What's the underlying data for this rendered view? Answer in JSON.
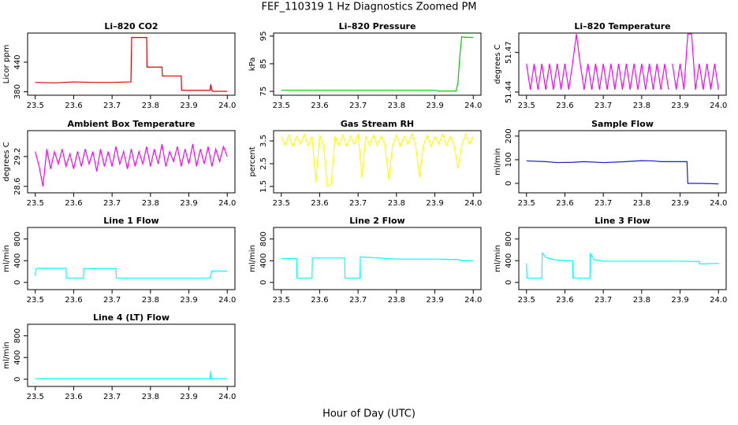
{
  "title": "FEF_110319  1 Hz Diagnostics Zoomed PM",
  "xlabel": "Hour of Day (UTC)",
  "chart_data": [
    {
      "type": "line",
      "title": "Li–820 CO2",
      "ylabel": "Licor ppm",
      "color": "#e00000",
      "xlim": [
        23.48,
        24.02
      ],
      "xticks": [
        23.5,
        23.6,
        23.7,
        23.8,
        23.9,
        {
          "value": 24,
          "label": "24.0"
        }
      ],
      "ylim": [
        373,
        499
      ],
      "yticks": [
        380,
        440
      ],
      "x": [
        23.5,
        23.55,
        23.6,
        23.65,
        23.7,
        23.749,
        23.751,
        23.79,
        23.791,
        23.83,
        23.831,
        23.88,
        23.881,
        23.955,
        23.957,
        23.96,
        23.963,
        24.0
      ],
      "values": [
        399,
        398,
        400,
        399,
        399,
        400,
        490,
        490,
        430,
        430,
        412,
        412,
        383,
        383,
        395,
        382,
        381,
        381
      ]
    },
    {
      "type": "line",
      "title": "Li–820 Pressure",
      "ylabel": "kPa",
      "color": "#00cd00",
      "xlim": [
        23.48,
        24.02
      ],
      "xticks": [
        23.5,
        23.6,
        23.7,
        23.8,
        23.9,
        {
          "value": 24,
          "label": "24.0"
        }
      ],
      "ylim": [
        73.6,
        96.1
      ],
      "yticks": [
        75,
        85,
        95
      ],
      "x": [
        23.5,
        23.6,
        23.7,
        23.8,
        23.9,
        23.91,
        23.955,
        23.96,
        23.965,
        23.97,
        23.975,
        24.0
      ],
      "values": [
        75.4,
        75.4,
        75.4,
        75.4,
        75.4,
        75.1,
        75.1,
        78,
        88,
        94.8,
        94.6,
        94.5
      ]
    },
    {
      "type": "line",
      "title": "Li–820 Temperature",
      "ylabel": "degrees C",
      "color": "#ff00ff",
      "xlim": [
        23.48,
        24.02
      ],
      "xticks": [
        23.5,
        23.6,
        23.7,
        23.8,
        23.9,
        {
          "value": 24,
          "label": "24.0"
        }
      ],
      "ylim": [
        51.4376,
        51.4847
      ],
      "yticks": [
        51.44,
        51.47
      ],
      "x": [
        23.5,
        23.51,
        23.52,
        23.53,
        23.54,
        23.55,
        23.56,
        23.57,
        23.58,
        23.59,
        23.6,
        23.61,
        23.62,
        23.63,
        23.64,
        23.65,
        23.66,
        23.67,
        23.68,
        23.69,
        23.7,
        23.71,
        23.72,
        23.73,
        23.74,
        23.75,
        23.76,
        23.77,
        23.78,
        23.79,
        23.8,
        23.81,
        23.82,
        23.83,
        23.84,
        23.85,
        23.86,
        23.87,
        23.875,
        23.88,
        23.89,
        23.9,
        23.91,
        23.92,
        23.93,
        23.94,
        23.95,
        23.96,
        23.97,
        23.98,
        23.99,
        24.0
      ],
      "values": [
        51.4615,
        51.4418,
        51.4615,
        51.4418,
        51.4615,
        51.4418,
        51.4615,
        51.4418,
        51.4615,
        51.4418,
        51.4615,
        51.4418,
        51.4615,
        51.484,
        51.4615,
        51.4418,
        51.4615,
        51.4418,
        51.4615,
        51.4418,
        51.4615,
        51.4418,
        51.4615,
        51.4418,
        51.4615,
        51.4418,
        51.4615,
        51.4418,
        51.4615,
        51.4418,
        51.4615,
        51.4418,
        51.4615,
        51.4418,
        51.4615,
        51.4418,
        51.4615,
        51.4418,
        null,
        51.4615,
        51.4418,
        51.4615,
        51.4418,
        51.484,
        51.484,
        51.4418,
        51.4615,
        51.4418,
        51.4615,
        51.4418,
        51.4615,
        51.4418
      ]
    },
    {
      "type": "line",
      "title": "Ambient Box Temperature",
      "ylabel": "degrees C",
      "color": "#ff00ff",
      "xlim": [
        23.48,
        24.02
      ],
      "xticks": [
        23.5,
        23.6,
        23.7,
        23.8,
        23.9,
        {
          "value": 24,
          "label": "24.0"
        }
      ],
      "ylim": [
        28.47,
        29.72
      ],
      "yticks": [
        28.6,
        29.2
      ],
      "x": [
        23.5,
        23.51,
        23.52,
        23.53,
        23.54,
        23.55,
        23.56,
        23.57,
        23.58,
        23.59,
        23.6,
        23.61,
        23.62,
        23.63,
        23.64,
        23.65,
        23.66,
        23.67,
        23.68,
        23.69,
        23.7,
        23.71,
        23.72,
        23.73,
        23.74,
        23.75,
        23.76,
        23.77,
        23.78,
        23.79,
        23.8,
        23.81,
        23.82,
        23.83,
        23.84,
        23.85,
        23.86,
        23.87,
        23.88,
        23.89,
        23.9,
        23.91,
        23.92,
        23.93,
        23.94,
        23.95,
        23.96,
        23.97,
        23.98,
        23.99,
        24.0
      ],
      "values": [
        29.3,
        29.0,
        28.6,
        29.35,
        28.95,
        29.3,
        29.05,
        29.35,
        29.0,
        29.25,
        28.95,
        29.3,
        29.0,
        29.35,
        29.05,
        29.3,
        28.9,
        29.35,
        29.0,
        29.3,
        29.0,
        29.4,
        29.05,
        29.3,
        28.95,
        29.35,
        29.0,
        29.3,
        29.05,
        29.4,
        29.0,
        29.35,
        29.05,
        29.45,
        29.0,
        29.3,
        29.1,
        29.4,
        29.0,
        29.35,
        29.05,
        29.45,
        29.0,
        29.35,
        29.05,
        29.4,
        29.0,
        29.35,
        29.1,
        29.4,
        29.2
      ]
    },
    {
      "type": "line",
      "title": "Gas Stream RH",
      "ylabel": "percent",
      "color": "#ffff00",
      "xlim": [
        23.48,
        24.02
      ],
      "xticks": [
        23.5,
        23.6,
        23.7,
        23.8,
        23.9,
        {
          "value": 24,
          "label": "24.0"
        }
      ],
      "ylim": [
        1.22,
        3.95
      ],
      "yticks": [
        1.5,
        2.5,
        3.5
      ],
      "x": [
        23.5,
        23.51,
        23.52,
        23.53,
        23.54,
        23.55,
        23.56,
        23.57,
        23.58,
        23.59,
        23.6,
        23.61,
        23.62,
        23.63,
        23.64,
        23.65,
        23.66,
        23.67,
        23.68,
        23.69,
        23.7,
        23.71,
        23.72,
        23.73,
        23.74,
        23.75,
        23.76,
        23.77,
        23.78,
        23.79,
        23.8,
        23.81,
        23.82,
        23.83,
        23.84,
        23.85,
        23.86,
        23.87,
        23.88,
        23.89,
        23.9,
        23.91,
        23.92,
        23.93,
        23.94,
        23.95,
        23.96,
        23.97,
        23.98,
        23.99,
        24.0
      ],
      "values": [
        3.7,
        3.3,
        3.75,
        3.25,
        3.7,
        3.35,
        3.8,
        3.3,
        3.7,
        1.7,
        3.75,
        3.3,
        1.5,
        1.6,
        3.7,
        3.3,
        3.75,
        3.25,
        3.7,
        3.35,
        3.8,
        1.9,
        3.7,
        3.3,
        3.75,
        3.3,
        3.7,
        3.35,
        1.8,
        3.3,
        3.75,
        3.25,
        3.7,
        3.35,
        3.8,
        3.3,
        1.9,
        3.3,
        3.75,
        3.25,
        3.7,
        3.35,
        3.8,
        3.3,
        3.7,
        3.3,
        2.3,
        3.3,
        3.8,
        3.35,
        3.7
      ]
    },
    {
      "type": "line",
      "title": "Sample Flow",
      "ylabel": "ml/min",
      "color": "#1c1ccc",
      "xlim": [
        23.48,
        24.02
      ],
      "xticks": [
        23.5,
        23.6,
        23.7,
        23.8,
        23.9,
        {
          "value": 24,
          "label": "24.0"
        }
      ],
      "ylim": [
        -40,
        223
      ],
      "yticks": [
        0,
        100,
        200
      ],
      "x": [
        23.5,
        23.55,
        23.58,
        23.62,
        23.65,
        23.7,
        23.75,
        23.8,
        23.83,
        23.85,
        23.9,
        23.918,
        23.92,
        23.95,
        24.0
      ],
      "values": [
        95,
        92,
        88,
        89,
        92,
        88,
        91,
        96,
        95,
        92,
        92,
        92,
        0,
        0,
        -2
      ]
    },
    {
      "type": "line",
      "title": "Line 1 Flow",
      "ylabel": "ml/min",
      "color": "#00ffff",
      "xlim": [
        23.48,
        24.02
      ],
      "xticks": [
        23.5,
        23.6,
        23.7,
        23.8,
        23.9,
        {
          "value": 24,
          "label": "24.0"
        }
      ],
      "ylim": [
        -133,
        1013
      ],
      "yticks": [
        0,
        400,
        800
      ],
      "x": [
        23.5,
        23.502,
        23.505,
        23.58,
        23.581,
        23.625,
        23.626,
        23.71,
        23.711,
        23.955,
        23.96,
        24.0
      ],
      "values": [
        120,
        250,
        260,
        260,
        80,
        80,
        255,
        255,
        80,
        80,
        210,
        210
      ]
    },
    {
      "type": "line",
      "title": "Line 2 Flow",
      "ylabel": "ml/min",
      "color": "#00ffff",
      "xlim": [
        23.48,
        24.02
      ],
      "xticks": [
        23.5,
        23.6,
        23.7,
        23.8,
        23.9,
        {
          "value": 24,
          "label": "24.0"
        }
      ],
      "ylim": [
        -133,
        1013
      ],
      "yticks": [
        0,
        400,
        800
      ],
      "x": [
        23.5,
        23.54,
        23.541,
        23.58,
        23.581,
        23.665,
        23.666,
        23.705,
        23.706,
        23.8,
        23.9,
        23.96,
        23.97,
        24.0
      ],
      "values": [
        440,
        440,
        80,
        80,
        450,
        450,
        80,
        80,
        470,
        430,
        430,
        420,
        400,
        400
      ]
    },
    {
      "type": "line",
      "title": "Line 3 Flow",
      "ylabel": "ml/min",
      "color": "#00ffff",
      "xlim": [
        23.48,
        24.02
      ],
      "xticks": [
        23.5,
        23.6,
        23.7,
        23.8,
        23.9,
        {
          "value": 24,
          "label": "24.0"
        }
      ],
      "ylim": [
        -133,
        1013
      ],
      "yticks": [
        0,
        400,
        800
      ],
      "x": [
        23.5,
        23.501,
        23.505,
        23.54,
        23.541,
        23.55,
        23.57,
        23.6,
        23.62,
        23.621,
        23.665,
        23.666,
        23.675,
        23.7,
        23.8,
        23.9,
        23.95,
        23.951,
        24.0
      ],
      "values": [
        350,
        80,
        80,
        80,
        540,
        460,
        420,
        400,
        400,
        80,
        80,
        540,
        420,
        390,
        390,
        390,
        385,
        340,
        350
      ]
    },
    {
      "type": "line",
      "title": "Line 4 (LT) Flow",
      "ylabel": "ml/min",
      "color": "#00ffff",
      "xlim": [
        23.48,
        24.02
      ],
      "xticks": [
        23.5,
        23.6,
        23.7,
        23.8,
        23.9,
        {
          "value": 24,
          "label": "24.0"
        }
      ],
      "ylim": [
        -133,
        1013
      ],
      "yticks": [
        0,
        400,
        800
      ],
      "x": [
        23.5,
        23.7,
        23.955,
        23.957,
        23.958,
        23.96,
        24.0
      ],
      "values": [
        10,
        10,
        10,
        150,
        10,
        10,
        10
      ]
    }
  ]
}
